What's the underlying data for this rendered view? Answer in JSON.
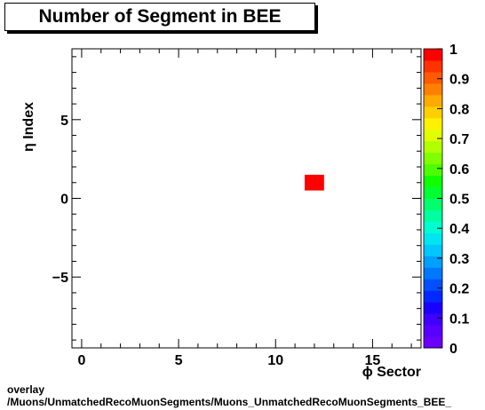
{
  "title": "Number of Segment in BEE",
  "footer": {
    "line1": "overlay",
    "line2": "/Muons/UnmatchedRecoMuonSegments/Muons_UnmatchedRecoMuonSegments_BEE_"
  },
  "chart_data": {
    "type": "heatmap",
    "title": "Number of Segment in BEE",
    "xlabel": "ϕ Sector",
    "ylabel": "η Index",
    "xlim": [
      -0.5,
      17.5
    ],
    "ylim": [
      -9.5,
      9.5
    ],
    "xticks": [
      0,
      5,
      10,
      15
    ],
    "yticks": [
      -5,
      0,
      5
    ],
    "xtick_labels": [
      "0",
      "5",
      "10",
      "15"
    ],
    "ytick_labels": [
      "−5",
      "0",
      "5"
    ],
    "zlim": [
      0,
      1
    ],
    "zticks": [
      0,
      0.1,
      0.2,
      0.3,
      0.4,
      0.5,
      0.6,
      0.7,
      0.8,
      0.9,
      1
    ],
    "ztick_labels": [
      "0",
      "0.1",
      "0.2",
      "0.3",
      "0.4",
      "0.5",
      "0.6",
      "0.7",
      "0.8",
      "0.9",
      "1"
    ],
    "cells": [
      {
        "x": 12,
        "y": 1,
        "value": 1
      }
    ],
    "palette": [
      "#6b00ff",
      "#5800ff",
      "#3f00ff",
      "#1a00ff",
      "#0028ff",
      "#0050ff",
      "#0078ff",
      "#00a0ff",
      "#00c8ff",
      "#00e6f0",
      "#00ffd0",
      "#00ffa0",
      "#00ff6a",
      "#00ff30",
      "#10ff00",
      "#4cff00",
      "#80ff00",
      "#b2ff00",
      "#e0ff00",
      "#fff200",
      "#ffd000",
      "#ffaa00",
      "#ff8000",
      "#ff5a00",
      "#ff3200",
      "#ff0000"
    ],
    "grid": false
  }
}
